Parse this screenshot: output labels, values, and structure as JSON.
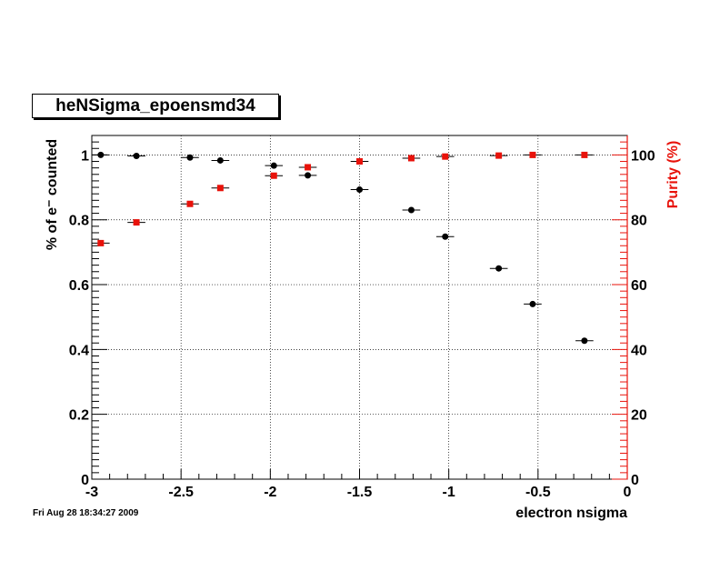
{
  "title": "heNSigma_epoensmd34",
  "timestamp": "Fri Aug 28 18:34:27 2009",
  "chart_data": {
    "type": "scatter",
    "xlabel": "electron nsigma",
    "ylabel_left": "% of e⁻ counted",
    "ylabel_right": "Purity (%)",
    "xlim": [
      -3,
      0
    ],
    "ylim_left": [
      0,
      1.06
    ],
    "ylim_right": [
      0,
      106
    ],
    "grid": true,
    "x_ticks": [
      "-3",
      "-2.5",
      "-2",
      "-1.5",
      "-1",
      "-0.5",
      "0"
    ],
    "y_left_ticks": [
      "0",
      "0.2",
      "0.4",
      "0.6",
      "0.8",
      "1"
    ],
    "y_right_ticks": [
      "0",
      "20",
      "40",
      "60",
      "80",
      "100"
    ],
    "colors": {
      "efficiency": "#000000",
      "purity": "#e8120a",
      "right_axis": "#e8120a"
    },
    "series": [
      {
        "axis": "left",
        "marker": "circle",
        "points": [
          {
            "x": -2.95,
            "y": 1.0
          },
          {
            "x": -2.75,
            "y": 0.997
          },
          {
            "x": -2.45,
            "y": 0.992
          },
          {
            "x": -2.28,
            "y": 0.983
          },
          {
            "x": -1.98,
            "y": 0.967
          },
          {
            "x": -1.79,
            "y": 0.937
          },
          {
            "x": -1.5,
            "y": 0.893
          },
          {
            "x": -1.21,
            "y": 0.83
          },
          {
            "x": -1.02,
            "y": 0.748
          },
          {
            "x": -0.72,
            "y": 0.65
          },
          {
            "x": -0.53,
            "y": 0.54
          },
          {
            "x": -0.24,
            "y": 0.427
          }
        ]
      },
      {
        "axis": "right",
        "marker": "square",
        "points": [
          {
            "x": -2.95,
            "y": 72.8
          },
          {
            "x": -2.75,
            "y": 79.2
          },
          {
            "x": -2.45,
            "y": 84.9
          },
          {
            "x": -2.28,
            "y": 89.8
          },
          {
            "x": -1.98,
            "y": 93.6
          },
          {
            "x": -1.79,
            "y": 96.2
          },
          {
            "x": -1.5,
            "y": 98.0
          },
          {
            "x": -1.21,
            "y": 99.0
          },
          {
            "x": -1.02,
            "y": 99.5
          },
          {
            "x": -0.72,
            "y": 99.8
          },
          {
            "x": -0.53,
            "y": 100.0
          },
          {
            "x": -0.24,
            "y": 100.0
          }
        ]
      }
    ]
  }
}
